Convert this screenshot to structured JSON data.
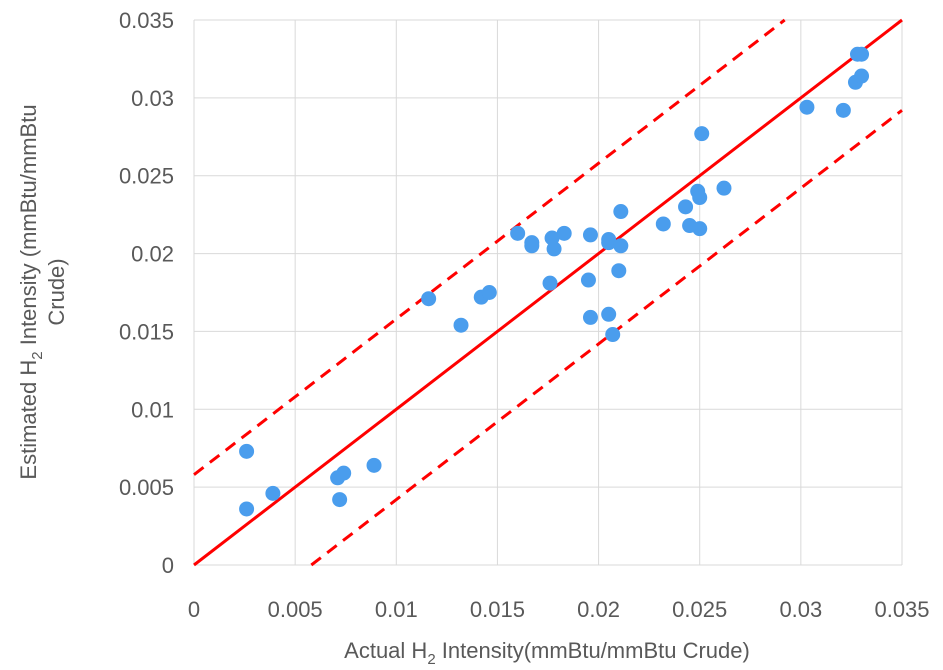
{
  "chart_data": {
    "type": "scatter",
    "title": "",
    "xlabel": {
      "pre": "Actual H",
      "sub": "2",
      "post": " Intensity(mmBtu/mmBtu Crude)"
    },
    "ylabel": {
      "line1_pre": "Estimated H",
      "line1_sub": "2",
      "line1_post": " Intensity (mmBtu/mmBtu",
      "line2": "Crude)"
    },
    "xlim": [
      0,
      0.035
    ],
    "ylim": [
      0,
      0.035
    ],
    "xticks": [
      "0",
      "0.005",
      "0.01",
      "0.015",
      "0.02",
      "0.025",
      "0.03",
      "0.035"
    ],
    "yticks": [
      "0",
      "0.005",
      "0.01",
      "0.015",
      "0.02",
      "0.025",
      "0.03",
      "0.035"
    ],
    "grid": true,
    "colors": {
      "points": "#4a9ded",
      "lines": "#ff0000",
      "grid": "#d9d9d9",
      "text": "#595959"
    },
    "reference_lines": [
      {
        "style": "solid",
        "slope": 1,
        "intercept": 0
      },
      {
        "style": "dashed",
        "slope": 1,
        "intercept": 0.0058
      },
      {
        "style": "dashed",
        "slope": 1,
        "intercept": -0.0058
      }
    ],
    "points": [
      [
        0.0026,
        0.0073
      ],
      [
        0.0026,
        0.0036
      ],
      [
        0.0039,
        0.0046
      ],
      [
        0.0071,
        0.0056
      ],
      [
        0.0074,
        0.0059
      ],
      [
        0.0072,
        0.0042
      ],
      [
        0.0089,
        0.0064
      ],
      [
        0.0116,
        0.0171
      ],
      [
        0.0132,
        0.0154
      ],
      [
        0.0142,
        0.0172
      ],
      [
        0.0146,
        0.0175
      ],
      [
        0.016,
        0.0213
      ],
      [
        0.0167,
        0.0207
      ],
      [
        0.0167,
        0.0205
      ],
      [
        0.0176,
        0.0181
      ],
      [
        0.0177,
        0.021
      ],
      [
        0.0178,
        0.0203
      ],
      [
        0.0183,
        0.0213
      ],
      [
        0.0195,
        0.0183
      ],
      [
        0.0196,
        0.0212
      ],
      [
        0.0196,
        0.0159
      ],
      [
        0.0205,
        0.0161
      ],
      [
        0.0205,
        0.0209
      ],
      [
        0.0205,
        0.0207
      ],
      [
        0.0207,
        0.0148
      ],
      [
        0.021,
        0.0189
      ],
      [
        0.0211,
        0.0205
      ],
      [
        0.0211,
        0.0227
      ],
      [
        0.0232,
        0.0219
      ],
      [
        0.0243,
        0.023
      ],
      [
        0.0245,
        0.0218
      ],
      [
        0.0249,
        0.024
      ],
      [
        0.025,
        0.0216
      ],
      [
        0.025,
        0.0236
      ],
      [
        0.0251,
        0.0277
      ],
      [
        0.0262,
        0.0242
      ],
      [
        0.0303,
        0.0294
      ],
      [
        0.0321,
        0.0292
      ],
      [
        0.0327,
        0.031
      ],
      [
        0.0328,
        0.0328
      ],
      [
        0.033,
        0.0328
      ],
      [
        0.033,
        0.0314
      ]
    ]
  }
}
